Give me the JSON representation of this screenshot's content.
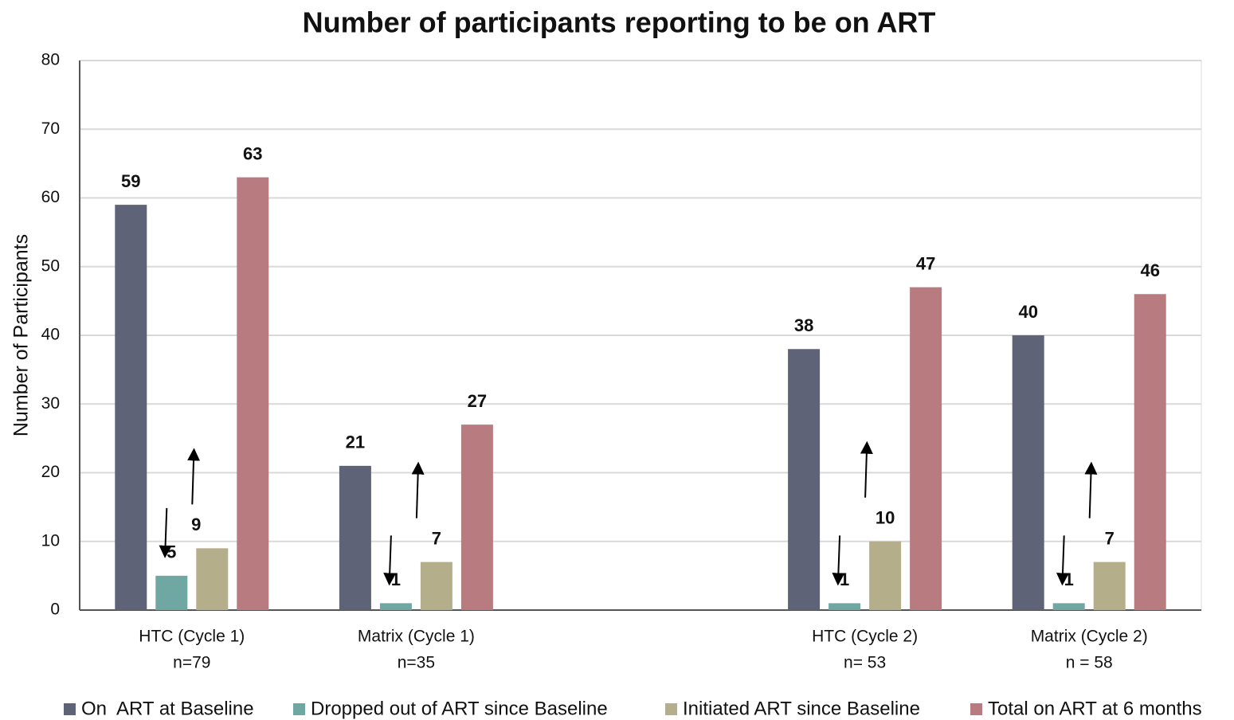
{
  "chart_data": {
    "type": "bar",
    "title": "Number of participants reporting to be on ART",
    "y_axis_label": "Number of Participants",
    "categories": [
      "HTC (Cycle 1)",
      "Matrix (Cycle 1)",
      null,
      "HTC (Cycle 2)",
      "Matrix (Cycle 2)"
    ],
    "category_sizes": [
      "n=79",
      "n=35",
      null,
      "n= 53",
      "n = 58"
    ],
    "series": [
      {
        "name": "On  ART at Baseline",
        "color": "#5f6378",
        "values": [
          59,
          21,
          null,
          38,
          40
        ]
      },
      {
        "name": "Dropped out of ART since Baseline",
        "color": "#6fa8a3",
        "values": [
          5,
          1,
          null,
          1,
          1
        ]
      },
      {
        "name": "Initiated ART since Baseline",
        "color": "#b5ae8a",
        "values": [
          9,
          7,
          null,
          10,
          7
        ]
      },
      {
        "name": "Total on ART at 6 months",
        "color": "#b87b80",
        "values": [
          63,
          27,
          null,
          47,
          46
        ]
      }
    ],
    "ylim": [
      0,
      80
    ],
    "yticks": [
      0,
      10,
      20,
      30,
      40,
      50,
      60,
      70,
      80
    ],
    "grid": true,
    "legend": "bottom"
  }
}
